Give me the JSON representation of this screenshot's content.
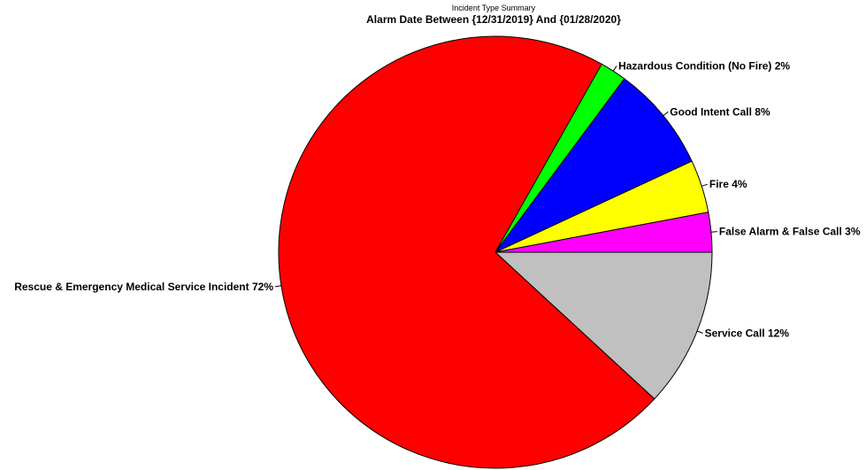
{
  "chart_data": {
    "type": "pie",
    "title": "Incident Type Summary",
    "subtitle": "Alarm Date Between {12/31/2019} And {01/28/2020}",
    "slices": [
      {
        "label": "Service Call 12%",
        "value": 12,
        "color": "#C0C0C0"
      },
      {
        "label": "Rescue & Emergency Medical Service Incident 72%",
        "value": 72,
        "color": "#FF0000"
      },
      {
        "label": "Hazardous Condition (No Fire) 2%",
        "value": 2,
        "color": "#00FF00"
      },
      {
        "label": "Good Intent Call 8%",
        "value": 8,
        "color": "#0000FF"
      },
      {
        "label": "Fire 4%",
        "value": 4,
        "color": "#FFFF00"
      },
      {
        "label": "False Alarm & False Call 3%",
        "value": 3,
        "color": "#FF00FF"
      }
    ]
  }
}
